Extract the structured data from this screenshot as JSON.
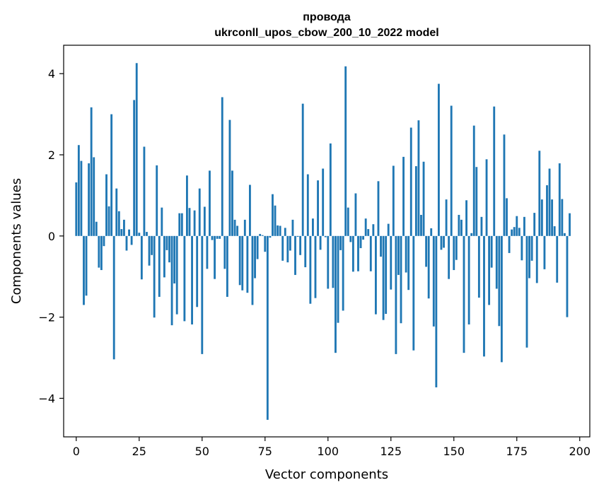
{
  "chart_data": {
    "type": "bar",
    "title_line1": "провода",
    "title_line2": "ukrconll_upos_cbow_200_10_2022 model",
    "xlabel": "Vector components",
    "ylabel": "Components values",
    "xlim": [
      -5,
      204
    ],
    "ylim": [
      -4.95,
      4.7
    ],
    "x_ticks": [
      0,
      25,
      50,
      75,
      100,
      125,
      150,
      175,
      200
    ],
    "y_ticks": [
      -4,
      -2,
      0,
      2,
      4
    ],
    "y_tick_labels": [
      "−4",
      "−2",
      "0",
      "2",
      "4"
    ],
    "bar_color": "#1f77b4",
    "grid": false,
    "values": [
      1.32,
      2.24,
      1.85,
      -1.7,
      -1.47,
      1.79,
      3.17,
      1.94,
      0.35,
      -0.78,
      -0.84,
      -0.25,
      1.52,
      0.73,
      3.0,
      -3.04,
      1.17,
      0.61,
      0.17,
      0.4,
      -0.36,
      0.16,
      -0.22,
      3.35,
      4.26,
      0.08,
      -1.07,
      2.2,
      0.1,
      -0.73,
      -0.47,
      -2.01,
      1.74,
      -1.5,
      0.7,
      -1.02,
      -0.35,
      -0.65,
      -2.2,
      -1.17,
      -1.93,
      0.56,
      0.56,
      -2.1,
      1.49,
      0.69,
      -2.18,
      0.63,
      -1.75,
      1.17,
      -2.91,
      0.72,
      -0.81,
      1.61,
      -0.1,
      -1.06,
      -0.07,
      -0.07,
      3.42,
      -0.81,
      -1.5,
      2.86,
      1.61,
      0.4,
      0.25,
      -1.21,
      -1.34,
      0.4,
      -1.4,
      1.26,
      -1.7,
      -1.04,
      -0.57,
      0.05,
      0.02,
      -0.39,
      -4.53,
      -0.04,
      1.03,
      0.75,
      0.26,
      0.25,
      -0.61,
      0.2,
      -0.65,
      -0.36,
      0.4,
      -0.96,
      -0.02,
      -0.47,
      3.26,
      -0.77,
      1.52,
      -1.67,
      0.43,
      -1.53,
      1.37,
      -0.34,
      1.66,
      -0.03,
      -1.3,
      2.28,
      -1.28,
      -2.88,
      -2.14,
      -0.35,
      -1.84,
      4.18,
      0.7,
      -0.15,
      -0.88,
      1.05,
      -0.87,
      -0.3,
      -0.09,
      0.43,
      0.17,
      -0.87,
      0.29,
      -1.93,
      1.35,
      -0.51,
      -2.07,
      -1.92,
      0.3,
      -1.32,
      1.73,
      -2.91,
      -0.96,
      -2.15,
      1.95,
      -0.9,
      -1.33,
      2.67,
      -2.82,
      1.72,
      2.85,
      0.52,
      1.83,
      -0.76,
      -1.54,
      0.19,
      -2.23,
      -3.73,
      3.75,
      -0.34,
      -0.29,
      0.9,
      -1.06,
      3.21,
      -0.84,
      -0.59,
      0.52,
      0.4,
      -2.88,
      0.88,
      -2.18,
      0.07,
      2.72,
      1.7,
      -1.52,
      0.47,
      -2.97,
      1.89,
      -1.7,
      -0.78,
      3.19,
      -1.3,
      -2.22,
      -3.11,
      2.5,
      0.93,
      -0.42,
      0.16,
      0.22,
      0.49,
      0.2,
      -0.6,
      0.47,
      -2.75,
      -1.04,
      -0.61,
      0.57,
      -1.16,
      2.1,
      0.9,
      -0.82,
      1.25,
      1.66,
      0.9,
      0.24,
      -1.15,
      1.79,
      0.91,
      0.07,
      -2.0,
      0.56
    ]
  }
}
